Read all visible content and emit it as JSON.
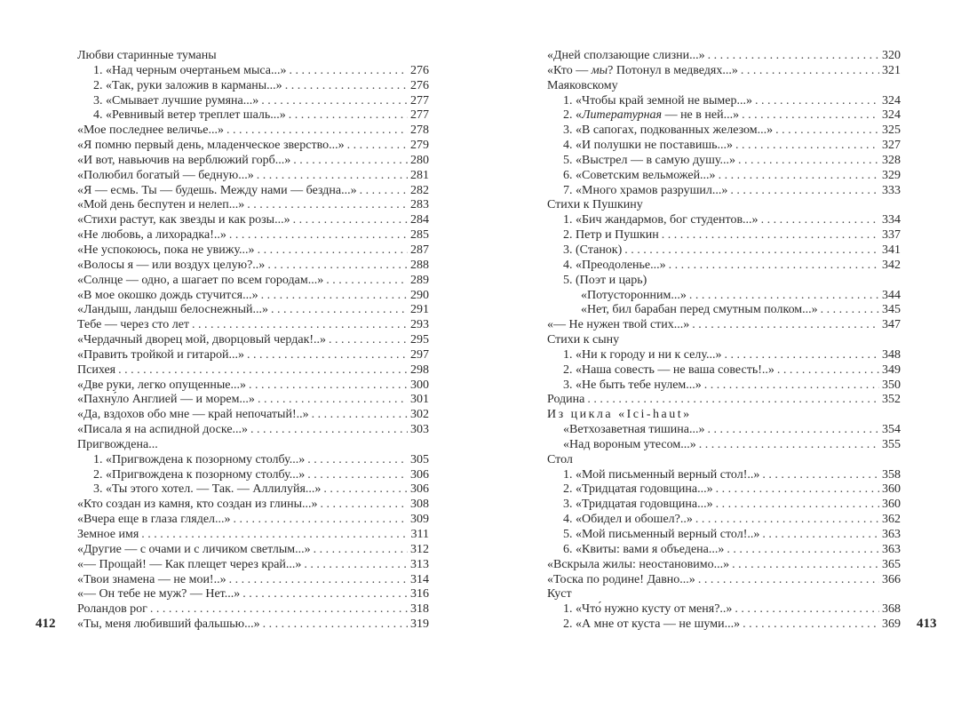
{
  "left_page": {
    "folio": "412",
    "entries": [
      {
        "level": 0,
        "title": "Любви старинные туманы"
      },
      {
        "level": 1,
        "title": "1. «Над черным очертаньем мыса...»",
        "page": "276"
      },
      {
        "level": 1,
        "title": "2. «Так, руки заложив в карманы...»",
        "page": "276"
      },
      {
        "level": 1,
        "title": "3. «Смывает лучшие румяна...»",
        "page": "277"
      },
      {
        "level": 1,
        "title": "4. «Ревнивый ветер треплет шаль...»",
        "page": "277"
      },
      {
        "level": 0,
        "title": "«Мое последнее величье...»",
        "page": "278"
      },
      {
        "level": 0,
        "title": "«Я помню первый день, младенческое зверство...»",
        "page": "279"
      },
      {
        "level": 0,
        "title": "«И вот, навьючив на верблюжий горб...»",
        "page": "280"
      },
      {
        "level": 0,
        "title": "«Полюбил богатый — бедную...»",
        "page": "281"
      },
      {
        "level": 0,
        "title": "«Я — есмь. Ты — будешь. Между нами — бездна...»",
        "page": "282"
      },
      {
        "level": 0,
        "title": "«Мой день беспутен и нелеп...»",
        "page": "283"
      },
      {
        "level": 0,
        "title": "«Стихи растут, как звезды и как розы...»",
        "page": "284"
      },
      {
        "level": 0,
        "title": "«Не любовь, а лихорадка!..»",
        "page": "285"
      },
      {
        "level": 0,
        "title": "«Не успокоюсь, пока не увижу...»",
        "page": "287"
      },
      {
        "level": 0,
        "title": "«Волосы я — или воздух целую?..»",
        "page": "288"
      },
      {
        "level": 0,
        "title": "«Солнце — одно, а шагает по всем городам...»",
        "page": "289"
      },
      {
        "level": 0,
        "title": "«В мое окошко дождь стучится...»",
        "page": "290"
      },
      {
        "level": 0,
        "title": "«Ландыш, ландыш белоснежный...»",
        "page": "291"
      },
      {
        "level": 0,
        "title": "Тебе — через сто лет",
        "page": "293"
      },
      {
        "level": 0,
        "title": "«Чердачный дворец мой, дворцовый чердак!..»",
        "page": "295"
      },
      {
        "level": 0,
        "title": "«Править тройкой и гитарой...»",
        "page": "297"
      },
      {
        "level": 0,
        "title": "Психея",
        "page": "298"
      },
      {
        "level": 0,
        "title": "«Две руки, легко опущенные...»",
        "page": "300"
      },
      {
        "level": 0,
        "title": "«Пахну́ло Англией — и морем...»",
        "page": "301"
      },
      {
        "level": 0,
        "title": "«Да, вздохов обо мне — край непочатый!..»",
        "page": "302"
      },
      {
        "level": 0,
        "title": "«Писала я на аспидной доске...»",
        "page": "303"
      },
      {
        "level": 0,
        "title": "Пригвождена..."
      },
      {
        "level": 1,
        "title": "1. «Пригвождена к позорному столбу...»",
        "page": "305"
      },
      {
        "level": 1,
        "title": "2. «Пригвождена к позорному столбу...»",
        "page": "306"
      },
      {
        "level": 1,
        "title": "3. «Ты этого хотел. — Так. — Аллилуйя...»",
        "page": "306"
      },
      {
        "level": 0,
        "title": "«Кто создан из камня, кто создан из глины...»",
        "page": "308"
      },
      {
        "level": 0,
        "title": "«Вчера еще в глаза глядел...»",
        "page": "309"
      },
      {
        "level": 0,
        "title": "Земное имя",
        "page": "311"
      },
      {
        "level": 0,
        "title": "«Другие — с очами и с личиком светлым...»",
        "page": "312"
      },
      {
        "level": 0,
        "title": "«— Прощай! — Как плещет через край...»",
        "page": "313"
      },
      {
        "level": 0,
        "title": "«Твои знамена — не мои!..»",
        "page": "314"
      },
      {
        "level": 0,
        "title": "«— Он тебе не муж? — Нет...»",
        "page": "316"
      },
      {
        "level": 0,
        "title": "Роландов рог",
        "page": "318"
      },
      {
        "level": 0,
        "title": "«Ты, меня любивший фальшью...»",
        "page": "319"
      }
    ]
  },
  "right_page": {
    "folio": "413",
    "entries": [
      {
        "level": 0,
        "title": "«Дней сползающие слизни...»",
        "page": "320"
      },
      {
        "level": 0,
        "title": "«Кто — ",
        "italic": "мы",
        "title_after": "? Потонул в медведях...»",
        "page": "321"
      },
      {
        "level": 0,
        "title": "Маяковскому"
      },
      {
        "level": 1,
        "title": "1. «Чтобы край земной не вымер...»",
        "page": "324"
      },
      {
        "level": 1,
        "title": "2. «",
        "italic": "Литературная",
        "title_after": " — не в ней...»",
        "page": "324"
      },
      {
        "level": 1,
        "title": "3. «В сапогах, подкованных железом...»",
        "page": "325"
      },
      {
        "level": 1,
        "title": "4. «И полушки не поставишь...»",
        "page": "327"
      },
      {
        "level": 1,
        "title": "5. «Выстрел — в самую душу...»",
        "page": "328"
      },
      {
        "level": 1,
        "title": "6. «Советским вельможей...»",
        "page": "329"
      },
      {
        "level": 1,
        "title": "7. «Много храмов разрушил...»",
        "page": "333"
      },
      {
        "level": 0,
        "title": "Стихи к Пушкину"
      },
      {
        "level": 1,
        "title": "1. «Бич жандармов, бог студентов...»",
        "page": "334"
      },
      {
        "level": 1,
        "title": "2. Петр и Пушкин",
        "page": "337"
      },
      {
        "level": 1,
        "title": "3. (Станок)",
        "page": "341"
      },
      {
        "level": 1,
        "title": "4. «Преодоленье...»",
        "page": "342"
      },
      {
        "level": 1,
        "title": "5. (Поэт и царь)"
      },
      {
        "level": 2,
        "title": "«Потусторонним...»",
        "page": "344"
      },
      {
        "level": 2,
        "title": "«Нет, бил барабан перед смутным полком...»",
        "page": "345"
      },
      {
        "level": 0,
        "title": "«— Не нужен твой стих...»",
        "page": "347"
      },
      {
        "level": 0,
        "title": "Стихи к сыну"
      },
      {
        "level": 1,
        "title": "1. «Ни к городу и ни к селу...»",
        "page": "348"
      },
      {
        "level": 1,
        "title": "2. «Наша совесть — не ваша совесть!..»",
        "page": "349"
      },
      {
        "level": 1,
        "title": "3. «Не быть тебе нулем...»",
        "page": "350"
      },
      {
        "level": 0,
        "title": "Родина",
        "page": "352"
      },
      {
        "level": 0,
        "title": "Из цикла «Ici-haut»",
        "spaced": true
      },
      {
        "level": 1,
        "title": "«Ветхозаветная тишина...»",
        "page": "354"
      },
      {
        "level": 1,
        "title": "«Над вороным утесом...»",
        "page": "355"
      },
      {
        "level": 0,
        "title": "Стол"
      },
      {
        "level": 1,
        "title": "1. «Мой письменный верный стол!..»",
        "page": "358"
      },
      {
        "level": 1,
        "title": "2. «Тридцатая годовщина...»",
        "page": "360"
      },
      {
        "level": 1,
        "title": "3. «Тридцатая годовщина...»",
        "page": "360"
      },
      {
        "level": 1,
        "title": "4. «Обидел и обошел?..»",
        "page": "362"
      },
      {
        "level": 1,
        "title": "5. «Мой письменный верный стол!..»",
        "page": "363"
      },
      {
        "level": 1,
        "title": "6. «Квиты: вами я объедена...»",
        "page": "363"
      },
      {
        "level": 0,
        "title": "«Вскрыла жилы: неостановимо...»",
        "page": "365"
      },
      {
        "level": 0,
        "title": "«Тоска по родине! Давно...»",
        "page": "366"
      },
      {
        "level": 0,
        "title": "Куст"
      },
      {
        "level": 1,
        "title": "1. «Что́ нужно кусту от меня?..»",
        "page": "368"
      },
      {
        "level": 1,
        "title": "2. «А мне от куста — не шуми...»",
        "page": "369"
      }
    ]
  }
}
